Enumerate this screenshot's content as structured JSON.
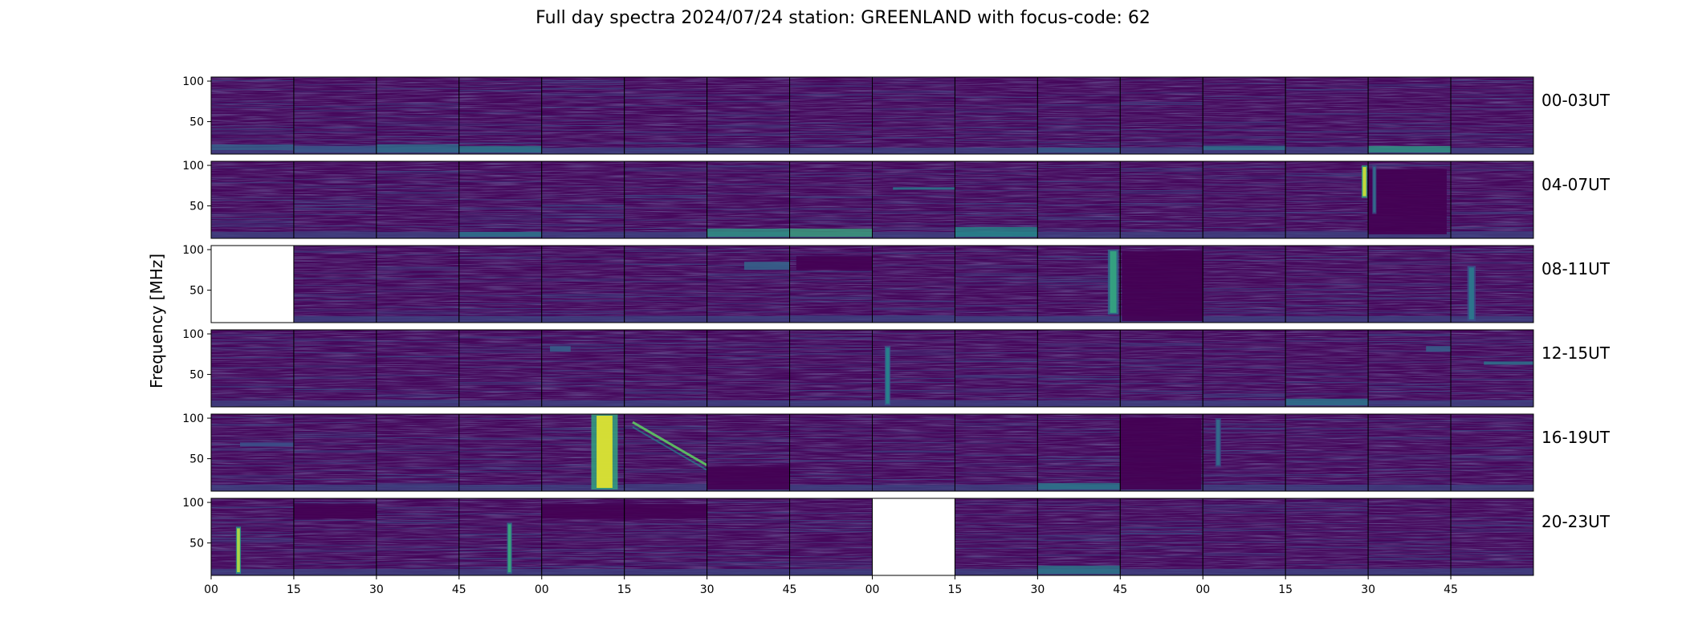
{
  "chart_data": {
    "type": "heatmap",
    "title": "Full day spectra 2024/07/24 station: GREENLAND with focus-code: 62",
    "ylabel": "Frequency [MHz]",
    "xlabel": "",
    "yticks": [
      100,
      50
    ],
    "ylim": [
      10,
      105
    ],
    "xticks": [
      "00",
      "15",
      "30",
      "45",
      "00",
      "15",
      "30",
      "45",
      "00",
      "15",
      "30",
      "45",
      "00",
      "15",
      "30",
      "45"
    ],
    "panels_per_row": 16,
    "panel_minutes": 15,
    "colormap": "viridis",
    "colors": {
      "low": "#440154",
      "background": "#46085c",
      "mid": "#21908d",
      "high": "#fde725",
      "empty": "#ffffff"
    },
    "rows": [
      {
        "label": "00-03UT",
        "missing": [],
        "events": [
          {
            "panel": 0,
            "type": "band",
            "f0": 15,
            "f1": 22,
            "v": 0.32
          },
          {
            "panel": 1,
            "type": "band",
            "f0": 12,
            "f1": 20,
            "v": 0.28
          },
          {
            "panel": 2,
            "type": "band",
            "f0": 12,
            "f1": 22,
            "v": 0.38
          },
          {
            "panel": 3,
            "type": "band",
            "f0": 12,
            "f1": 20,
            "v": 0.42
          },
          {
            "panel": 10,
            "type": "band",
            "f0": 12,
            "f1": 18,
            "v": 0.3
          },
          {
            "panel": 12,
            "type": "band",
            "f0": 15,
            "f1": 20,
            "v": 0.4
          },
          {
            "panel": 14,
            "type": "band",
            "f0": 12,
            "f1": 20,
            "v": 0.55
          }
        ]
      },
      {
        "label": "04-07UT",
        "missing": [],
        "events": [
          {
            "panel": 3,
            "type": "band",
            "f0": 12,
            "f1": 18,
            "v": 0.4
          },
          {
            "panel": 6,
            "type": "band",
            "f0": 12,
            "f1": 22,
            "v": 0.55
          },
          {
            "panel": 7,
            "type": "band",
            "f0": 12,
            "f1": 22,
            "v": 0.6
          },
          {
            "panel": 8,
            "type": "hline",
            "f0": 70,
            "f1": 73,
            "t0": 0.25,
            "t1": 1.0,
            "v": 0.4
          },
          {
            "panel": 9,
            "type": "band",
            "f0": 12,
            "f1": 24,
            "v": 0.5
          },
          {
            "panel": 13,
            "type": "burst",
            "t0": 0.92,
            "t1": 0.99,
            "f0": 60,
            "f1": 100,
            "v": 0.92
          },
          {
            "panel": 14,
            "type": "dark",
            "f0": 15,
            "f1": 95,
            "t0": 0.0,
            "t1": 0.95
          },
          {
            "panel": 14,
            "type": "burst",
            "t0": 0.05,
            "t1": 0.1,
            "f0": 40,
            "f1": 100,
            "v": 0.35
          }
        ]
      },
      {
        "label": "08-11UT",
        "missing": [
          0
        ],
        "events": [
          {
            "panel": 6,
            "type": "hline",
            "f0": 75,
            "f1": 85,
            "t0": 0.45,
            "t1": 1.0,
            "v": 0.32
          },
          {
            "panel": 7,
            "type": "dark",
            "f0": 75,
            "f1": 92,
            "t0": 0.08,
            "t1": 1.0
          },
          {
            "panel": 10,
            "type": "burst",
            "t0": 0.85,
            "t1": 0.98,
            "f0": 20,
            "f1": 100,
            "v": 0.58
          },
          {
            "panel": 11,
            "type": "dark",
            "f0": 12,
            "f1": 98,
            "t0": 0.02,
            "t1": 1.0
          },
          {
            "panel": 15,
            "type": "burst",
            "t0": 0.2,
            "t1": 0.3,
            "f0": 12,
            "f1": 80,
            "v": 0.4
          }
        ]
      },
      {
        "label": "12-15UT",
        "missing": [],
        "events": [
          {
            "panel": 4,
            "type": "hline",
            "f0": 78,
            "f1": 85,
            "t0": 0.1,
            "t1": 0.35,
            "v": 0.3
          },
          {
            "panel": 8,
            "type": "burst",
            "t0": 0.15,
            "t1": 0.22,
            "f0": 12,
            "f1": 85,
            "v": 0.45
          },
          {
            "panel": 13,
            "type": "band",
            "f0": 12,
            "f1": 20,
            "v": 0.4
          },
          {
            "panel": 14,
            "type": "hline",
            "f0": 78,
            "f1": 85,
            "t0": 0.7,
            "t1": 1.0,
            "v": 0.3
          },
          {
            "panel": 15,
            "type": "hline",
            "f0": 62,
            "f1": 66,
            "t0": 0.4,
            "t1": 1.0,
            "v": 0.38
          }
        ]
      },
      {
        "label": "16-19UT",
        "missing": [],
        "events": [
          {
            "panel": 0,
            "type": "hline",
            "f0": 65,
            "f1": 70,
            "t0": 0.35,
            "t1": 1.0,
            "v": 0.25
          },
          {
            "panel": 4,
            "type": "burst",
            "t0": 0.6,
            "t1": 0.92,
            "f0": 12,
            "f1": 105,
            "v": 0.95
          },
          {
            "panel": 5,
            "type": "drift",
            "t0": 0.1,
            "t1": 1.0,
            "f0": 95,
            "f1": 42,
            "v": 0.75
          },
          {
            "panel": 6,
            "type": "dark",
            "f0": 12,
            "f1": 40,
            "t0": 0.0,
            "t1": 1.0
          },
          {
            "panel": 11,
            "type": "dark",
            "f0": 12,
            "f1": 100,
            "t0": 0.0,
            "t1": 0.98
          },
          {
            "panel": 12,
            "type": "burst",
            "t0": 0.15,
            "t1": 0.22,
            "f0": 40,
            "f1": 100,
            "v": 0.35
          },
          {
            "panel": 10,
            "type": "band",
            "f0": 12,
            "f1": 20,
            "v": 0.42
          }
        ]
      },
      {
        "label": "20-23UT",
        "missing": [
          8
        ],
        "events": [
          {
            "panel": 0,
            "type": "burst",
            "t0": 0.3,
            "t1": 0.36,
            "f0": 12,
            "f1": 70,
            "v": 0.88
          },
          {
            "panel": 3,
            "type": "burst",
            "t0": 0.58,
            "t1": 0.64,
            "f0": 12,
            "f1": 75,
            "v": 0.6
          },
          {
            "panel": 4,
            "type": "dark",
            "f0": 80,
            "f1": 98,
            "t0": 0.0,
            "t1": 1.0
          },
          {
            "panel": 5,
            "type": "dark",
            "f0": 80,
            "f1": 98,
            "t0": 0.0,
            "t1": 1.0
          },
          {
            "panel": 1,
            "type": "dark",
            "f0": 80,
            "f1": 98,
            "t0": 0.0,
            "t1": 1.0
          },
          {
            "panel": 10,
            "type": "band",
            "f0": 12,
            "f1": 22,
            "v": 0.42
          }
        ]
      }
    ]
  }
}
